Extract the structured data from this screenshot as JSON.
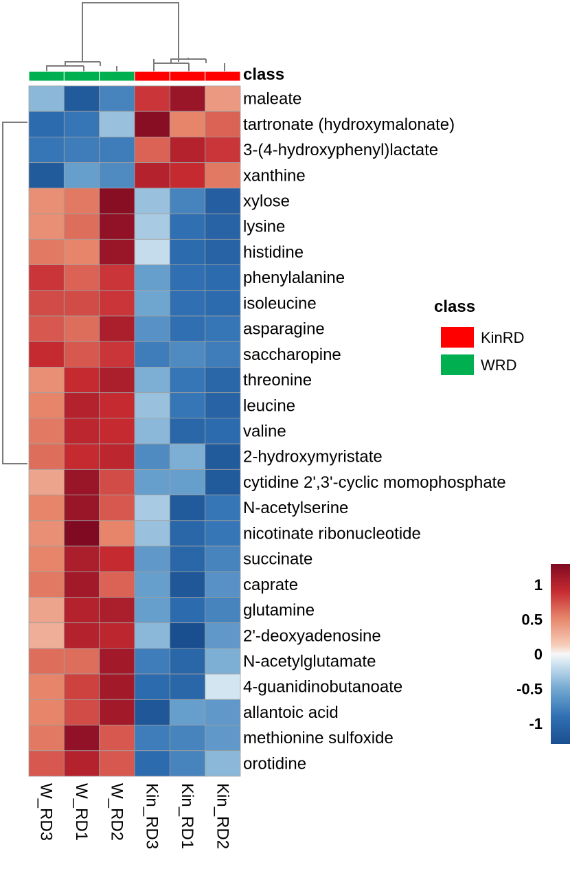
{
  "chart_data": {
    "type": "heatmap",
    "columns": [
      "W_RD3",
      "W_RD1",
      "W_RD2",
      "Kin_RD3",
      "Kin_RD1",
      "Kin_RD2"
    ],
    "class_bar_title": "class",
    "column_classes": [
      "WRD",
      "WRD",
      "WRD",
      "KinRD",
      "KinRD",
      "KinRD"
    ],
    "class_legend": {
      "title": "class",
      "entries": [
        {
          "label": "KinRD",
          "color": "#ff0000"
        },
        {
          "label": "WRD",
          "color": "#00b050"
        }
      ]
    },
    "rows": [
      "maleate",
      "tartronate (hydroxymalonate)",
      "3-(4-hydroxyphenyl)lactate",
      "xanthine",
      "xylose",
      "lysine",
      "histidine",
      "phenylalanine",
      "isoleucine",
      "asparagine",
      "saccharopine",
      "threonine",
      "leucine",
      "valine",
      "2-hydroxymyristate",
      "cytidine 2',3'-cyclic momophosphate",
      "N-acetylserine",
      "nicotinate ribonucleotide",
      "succinate",
      "caprate",
      "glutamine",
      "2'-deoxyadenosine",
      "N-acetylglutamate",
      "4-guanidinobutanoate",
      "allantoic acid",
      "methionine sulfoxide",
      "orotidine"
    ],
    "values": [
      [
        -0.4,
        -1.15,
        -0.75,
        0.85,
        1.15,
        0.4
      ],
      [
        -0.95,
        -0.85,
        -0.35,
        1.25,
        0.5,
        0.65
      ],
      [
        -0.85,
        -0.8,
        -0.8,
        0.65,
        1.0,
        0.85
      ],
      [
        -1.15,
        -0.55,
        -0.7,
        1.0,
        0.9,
        0.55
      ],
      [
        0.45,
        0.55,
        1.25,
        -0.35,
        -0.75,
        -1.1
      ],
      [
        0.45,
        0.6,
        1.2,
        -0.3,
        -0.9,
        -1.05
      ],
      [
        0.55,
        0.5,
        1.15,
        -0.2,
        -0.95,
        -1.05
      ],
      [
        0.85,
        0.65,
        0.85,
        -0.55,
        -0.9,
        -0.95
      ],
      [
        0.75,
        0.75,
        0.85,
        -0.5,
        -0.9,
        -0.95
      ],
      [
        0.7,
        0.6,
        1.05,
        -0.65,
        -0.9,
        -0.85
      ],
      [
        0.9,
        0.7,
        0.85,
        -0.8,
        -0.7,
        -0.8
      ],
      [
        0.45,
        0.9,
        1.05,
        -0.45,
        -0.85,
        -1.0
      ],
      [
        0.5,
        1.0,
        0.9,
        -0.35,
        -0.85,
        -1.05
      ],
      [
        0.55,
        0.95,
        0.9,
        -0.4,
        -1.0,
        -0.95
      ],
      [
        0.6,
        0.9,
        0.95,
        -0.7,
        -0.45,
        -1.15
      ],
      [
        0.35,
        1.15,
        0.75,
        -0.55,
        -0.55,
        -1.15
      ],
      [
        0.5,
        1.15,
        0.7,
        -0.3,
        -1.15,
        -0.85
      ],
      [
        0.45,
        1.3,
        0.5,
        -0.35,
        -1.0,
        -0.85
      ],
      [
        0.5,
        1.05,
        0.9,
        -0.6,
        -1.0,
        -0.75
      ],
      [
        0.55,
        1.1,
        0.65,
        -0.55,
        -1.2,
        -0.65
      ],
      [
        0.35,
        1.0,
        1.05,
        -0.55,
        -0.95,
        -0.75
      ],
      [
        0.3,
        1.0,
        0.95,
        -0.4,
        -1.3,
        -0.6
      ],
      [
        0.6,
        0.6,
        1.1,
        -0.8,
        -1.0,
        -0.45
      ],
      [
        0.5,
        0.8,
        1.1,
        -0.95,
        -1.0,
        -0.15
      ],
      [
        0.5,
        0.75,
        1.1,
        -1.2,
        -0.55,
        -0.6
      ],
      [
        0.55,
        1.2,
        0.7,
        -0.8,
        -0.75,
        -0.6
      ],
      [
        0.7,
        1.0,
        0.7,
        -0.95,
        -0.75,
        -0.4
      ]
    ],
    "color_scale": {
      "low": "#1a4f8f",
      "mid": "#f7f7f7",
      "high": "#7f0a22",
      "range": [
        -1.3,
        1.3
      ],
      "ticks": [
        {
          "value": 1,
          "label": "1"
        },
        {
          "value": 0.5,
          "label": "0.5"
        },
        {
          "value": 0,
          "label": "0"
        },
        {
          "value": -0.5,
          "label": "-0.5"
        },
        {
          "value": -1,
          "label": "-1"
        }
      ]
    }
  }
}
